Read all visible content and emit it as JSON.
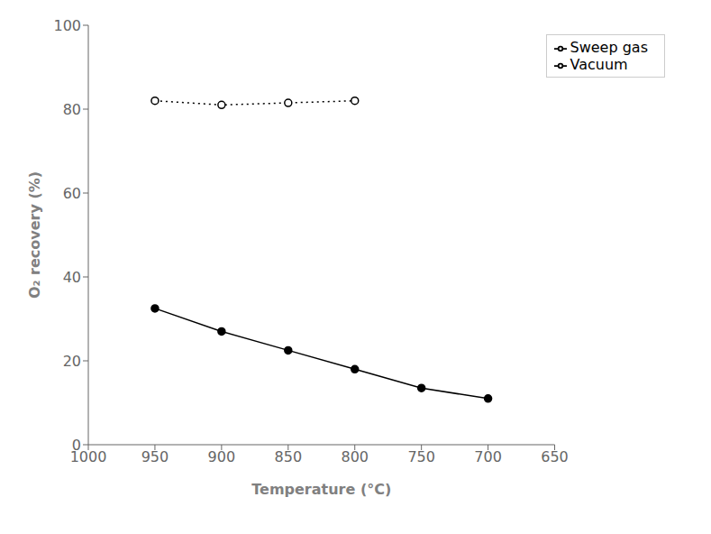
{
  "chart_data": {
    "type": "line",
    "xlabel": "Temperature (°C)",
    "ylabel": "O₂ recovery (%)",
    "xlim": [
      1000,
      650
    ],
    "ylim": [
      0,
      100
    ],
    "xticks": [
      1000,
      950,
      900,
      850,
      800,
      750,
      700,
      650
    ],
    "yticks": [
      0,
      20,
      40,
      60,
      80,
      100
    ],
    "grid": false,
    "legend": "upper right",
    "series": [
      {
        "name": "Sweep gas",
        "color": "black",
        "marker": "circle",
        "line_style": "solid",
        "x": [
          950,
          900,
          850,
          800,
          750,
          700
        ],
        "values": [
          32.5,
          27.0,
          22.5,
          18.0,
          13.5,
          11.0
        ]
      },
      {
        "name": "Vacuum",
        "color": "black",
        "marker": "open circle",
        "line_style": "dotted",
        "x": [
          950,
          900,
          850,
          800
        ],
        "values": [
          82.0,
          81.0,
          81.5,
          82.0
        ]
      }
    ]
  }
}
